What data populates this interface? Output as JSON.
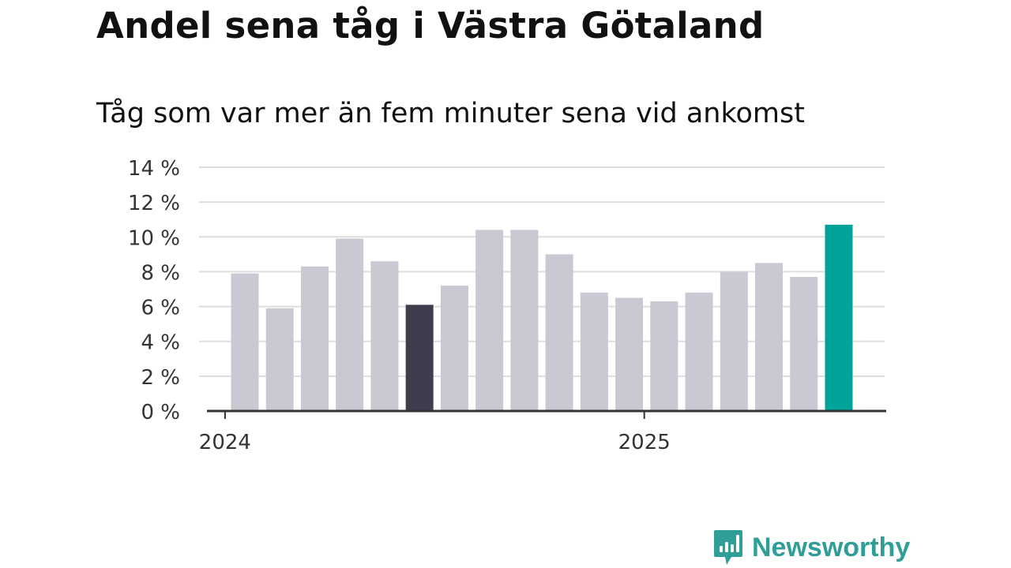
{
  "header": {
    "title": "Andel sena tåg i Västra Götaland",
    "subtitle": "Tåg som var mer än fem minuter sena vid ankomst"
  },
  "brand": {
    "name": "Newsworthy",
    "icon": "bar-chart-speech-bubble-icon",
    "color": "#2e9e96"
  },
  "chart_data": {
    "type": "bar",
    "title": "Andel sena tåg i Västra Götaland",
    "subtitle": "Tåg som var mer än fem minuter sena vid ankomst",
    "categories": [
      "2024-01",
      "2024-02",
      "2024-03",
      "2024-04",
      "2024-05",
      "2024-06",
      "2024-07",
      "2024-08",
      "2024-09",
      "2024-10",
      "2024-11",
      "2024-12",
      "2025-01",
      "2025-02",
      "2025-03",
      "2025-04",
      "2025-05",
      "2025-06"
    ],
    "values": [
      7.9,
      5.9,
      8.3,
      9.9,
      8.6,
      6.1,
      7.2,
      10.4,
      10.4,
      9.0,
      6.8,
      6.5,
      6.3,
      6.8,
      8.0,
      8.5,
      7.7,
      10.7
    ],
    "bar_colors": [
      "#c9c8d3",
      "#c9c8d3",
      "#c9c8d3",
      "#c9c8d3",
      "#c9c8d3",
      "#3f3d4d",
      "#c9c8d3",
      "#c9c8d3",
      "#c9c8d3",
      "#c9c8d3",
      "#c9c8d3",
      "#c9c8d3",
      "#c9c8d3",
      "#c9c8d3",
      "#c9c8d3",
      "#c9c8d3",
      "#c9c8d3",
      "#00a39a"
    ],
    "xlabel": "",
    "ylabel": "",
    "ylim": [
      0,
      14
    ],
    "yticks": [
      0,
      2,
      4,
      6,
      8,
      10,
      12,
      14
    ],
    "ytick_labels": [
      "0 %",
      "2 %",
      "4 %",
      "6 %",
      "8 %",
      "10 %",
      "12 %",
      "14 %"
    ],
    "xticks": [
      {
        "label": "2024",
        "category": "2024-01"
      },
      {
        "label": "2025",
        "category": "2025-01"
      }
    ],
    "grid": true,
    "legend": "none",
    "colors": {
      "default": "#c9c8d3",
      "highlight_dark": "#3f3d4d",
      "latest": "#00a39a",
      "grid": "#dedede",
      "axis": "#333333"
    }
  }
}
